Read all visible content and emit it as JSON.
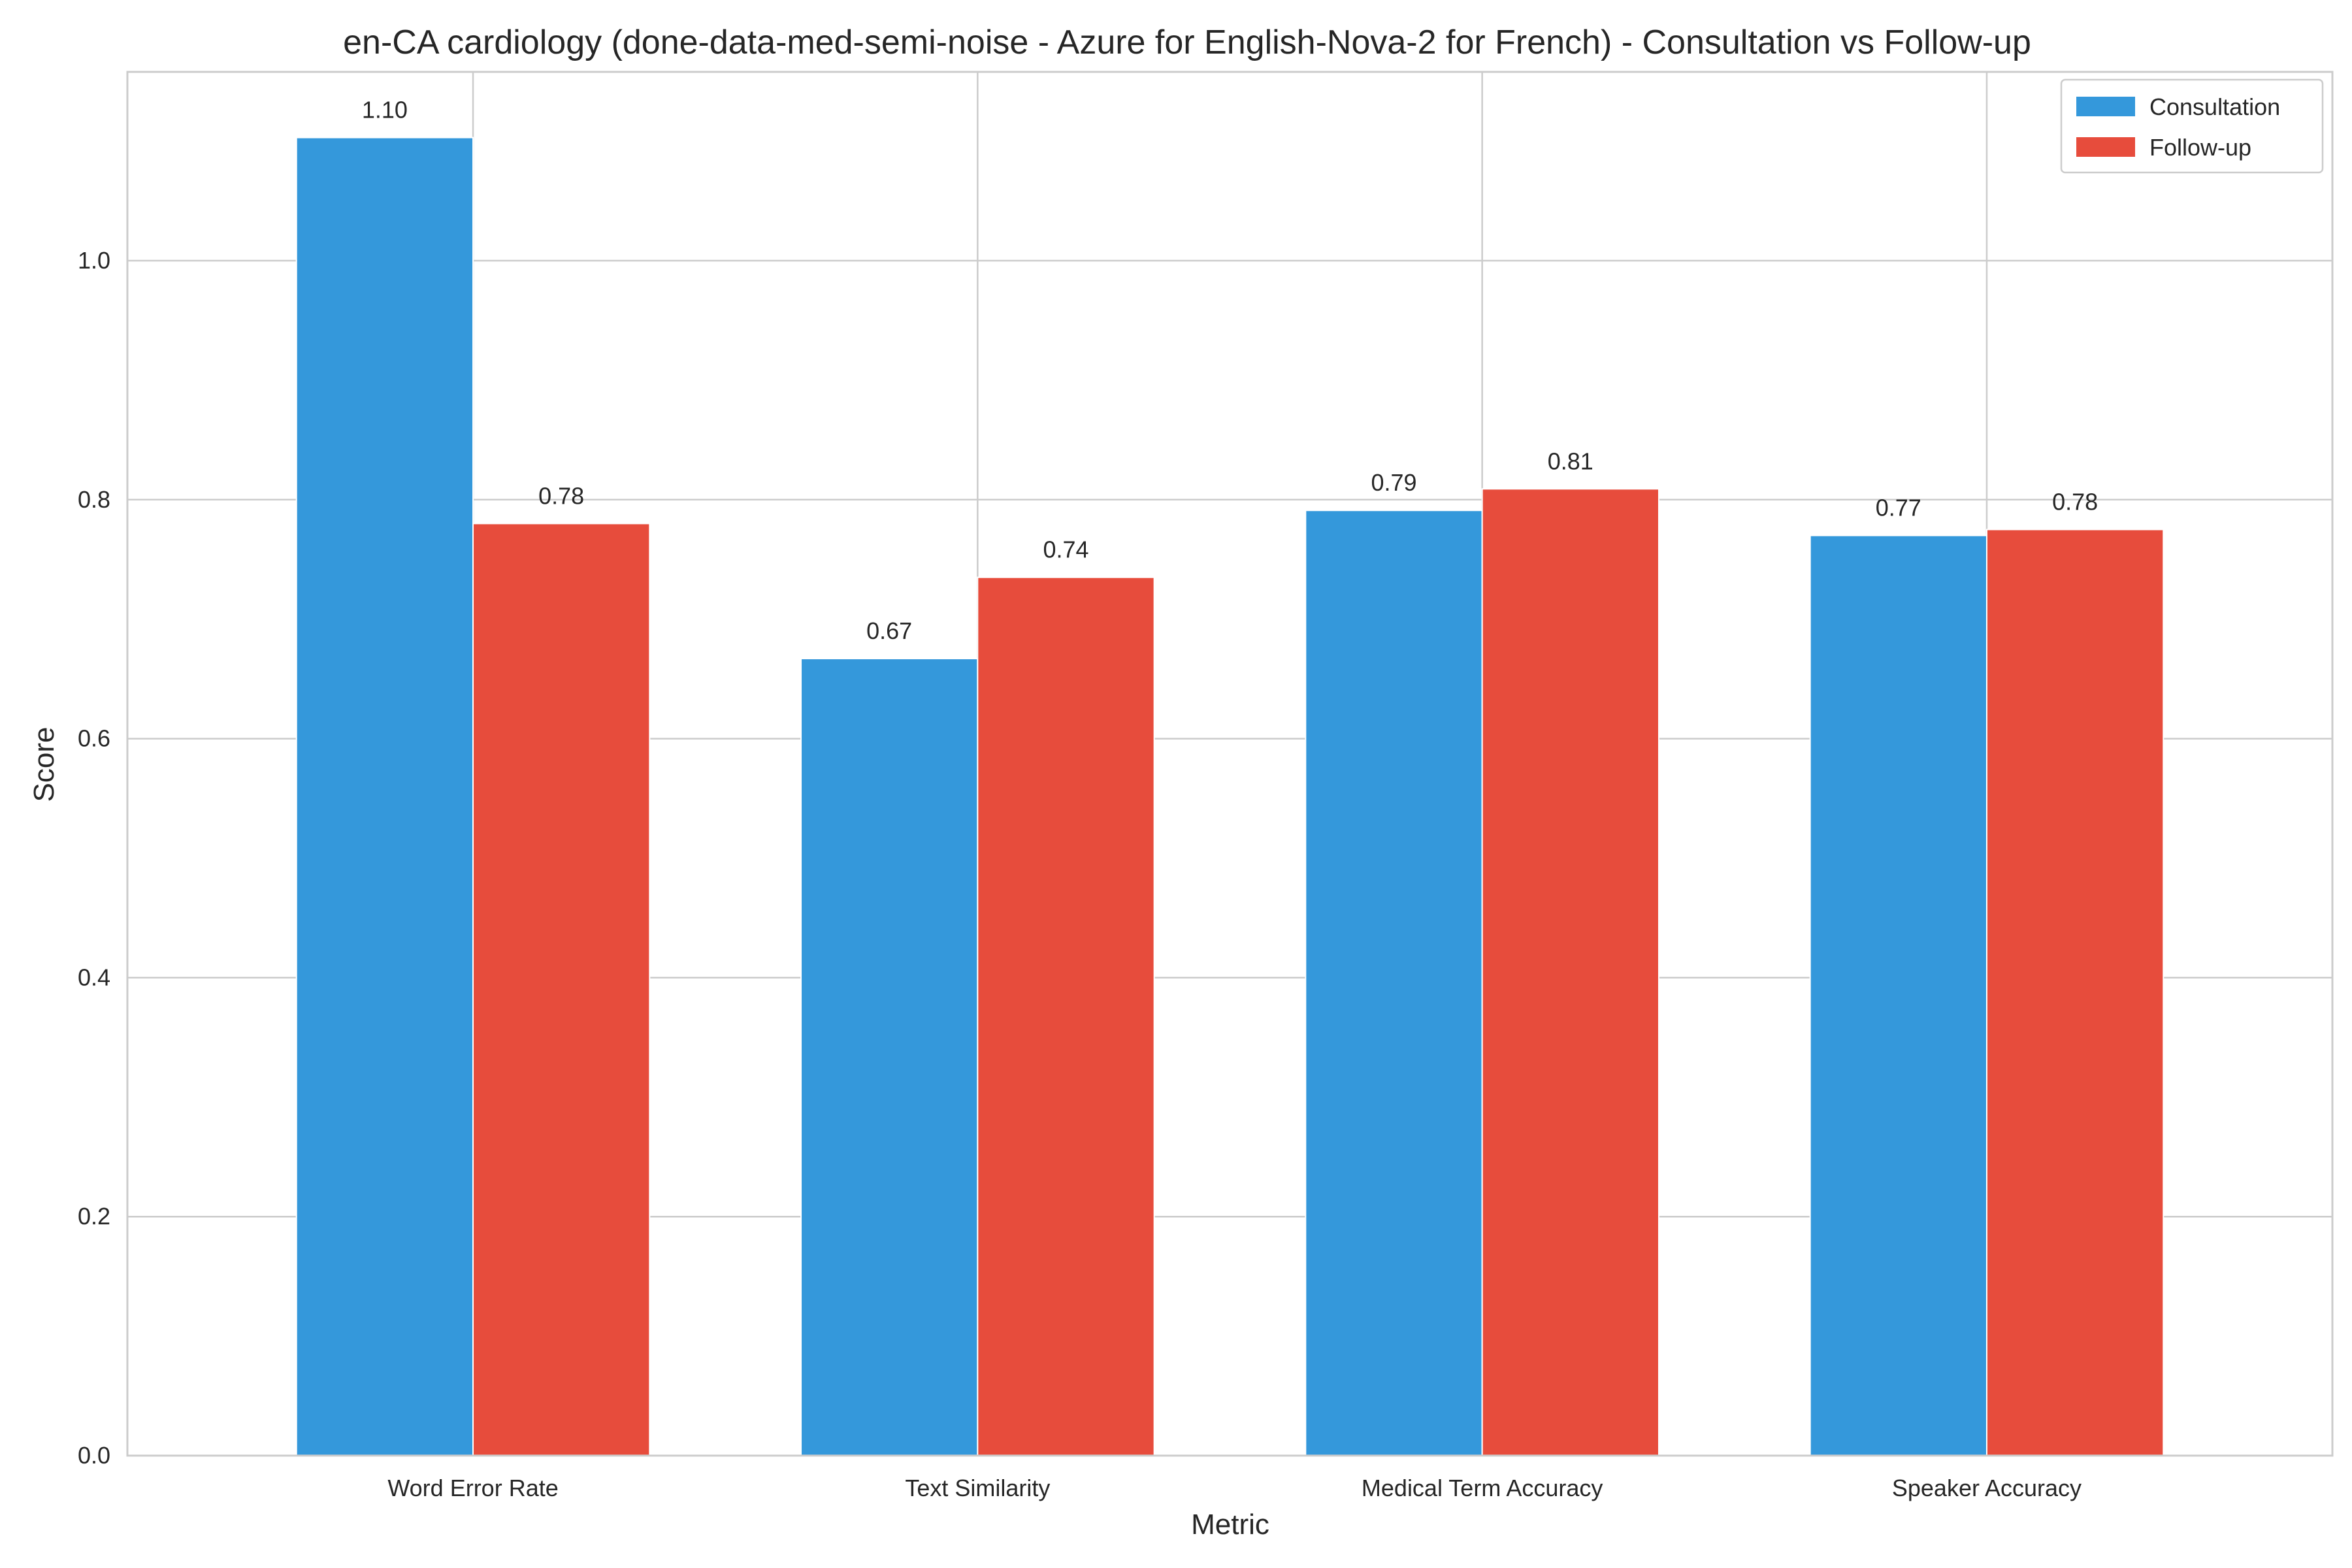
{
  "chart_data": {
    "type": "bar",
    "title": "en-CA cardiology (done-data-med-semi-noise - Azure for English-Nova-2 for French) - Consultation vs Follow-up",
    "xlabel": "Metric",
    "ylabel": "Score",
    "categories": [
      "Word Error Rate",
      "Text Similarity",
      "Medical Term Accuracy",
      "Speaker Accuracy"
    ],
    "series": [
      {
        "name": "Consultation",
        "color": "#3498db",
        "values": [
          1.103,
          0.667,
          0.791,
          0.77
        ],
        "labels": [
          "1.10",
          "0.67",
          "0.79",
          "0.77"
        ]
      },
      {
        "name": "Follow-up",
        "color": "#e74c3c",
        "values": [
          0.78,
          0.735,
          0.809,
          0.775
        ],
        "labels": [
          "0.78",
          "0.74",
          "0.81",
          "0.78"
        ]
      }
    ],
    "ylim": [
      0,
      1.158
    ],
    "yticks": [
      0.0,
      0.2,
      0.4,
      0.6,
      0.8,
      1.0
    ],
    "ytick_labels": [
      "0.0",
      "0.2",
      "0.4",
      "0.6",
      "0.8",
      "1.0"
    ],
    "grid": true,
    "legend_position": "top-right"
  }
}
